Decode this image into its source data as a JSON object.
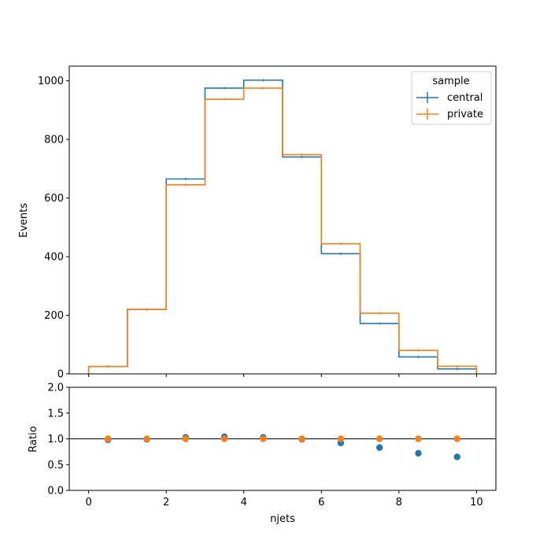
{
  "chart_data": [
    {
      "type": "line",
      "subtype": "step-histogram",
      "ylabel": "Events",
      "xlim": [
        -0.5,
        10.5
      ],
      "ylim": [
        0,
        1050
      ],
      "yticks": [
        0,
        200,
        400,
        600,
        800,
        1000
      ],
      "xticks": [
        0,
        2,
        4,
        6,
        8,
        10
      ],
      "bin_edges": [
        0,
        1,
        2,
        3,
        4,
        5,
        6,
        7,
        8,
        9,
        10
      ],
      "legend": {
        "title": "sample",
        "placement": "top-right"
      },
      "series": [
        {
          "name": "central",
          "color": "#1f77b4",
          "values": [
            25,
            220,
            665,
            975,
            1002,
            740,
            410,
            172,
            58,
            17
          ]
        },
        {
          "name": "private",
          "color": "#ff7f0e",
          "values": [
            25,
            220,
            645,
            937,
            975,
            748,
            444,
            207,
            80,
            26
          ]
        }
      ]
    },
    {
      "type": "scatter",
      "xlabel": "njets",
      "ylabel": "Ratio",
      "xlim": [
        -0.5,
        10.5
      ],
      "ylim": [
        0,
        2
      ],
      "yticks": [
        "0.0",
        "0.5",
        "1.0",
        "1.5",
        "2.0"
      ],
      "xticks": [
        0,
        2,
        4,
        6,
        8,
        10
      ],
      "reference_line": 1.0,
      "x": [
        0.5,
        1.5,
        2.5,
        3.5,
        4.5,
        5.5,
        6.5,
        7.5,
        8.5,
        9.5
      ],
      "series": [
        {
          "name": "central",
          "color": "#1f77b4",
          "values": [
            0.98,
            0.99,
            1.03,
            1.04,
            1.03,
            0.99,
            0.92,
            0.83,
            0.72,
            0.65
          ]
        },
        {
          "name": "private",
          "color": "#ff7f0e",
          "values": [
            1.0,
            1.0,
            1.0,
            1.0,
            1.0,
            1.0,
            1.0,
            1.0,
            1.0,
            1.0
          ]
        }
      ]
    }
  ]
}
